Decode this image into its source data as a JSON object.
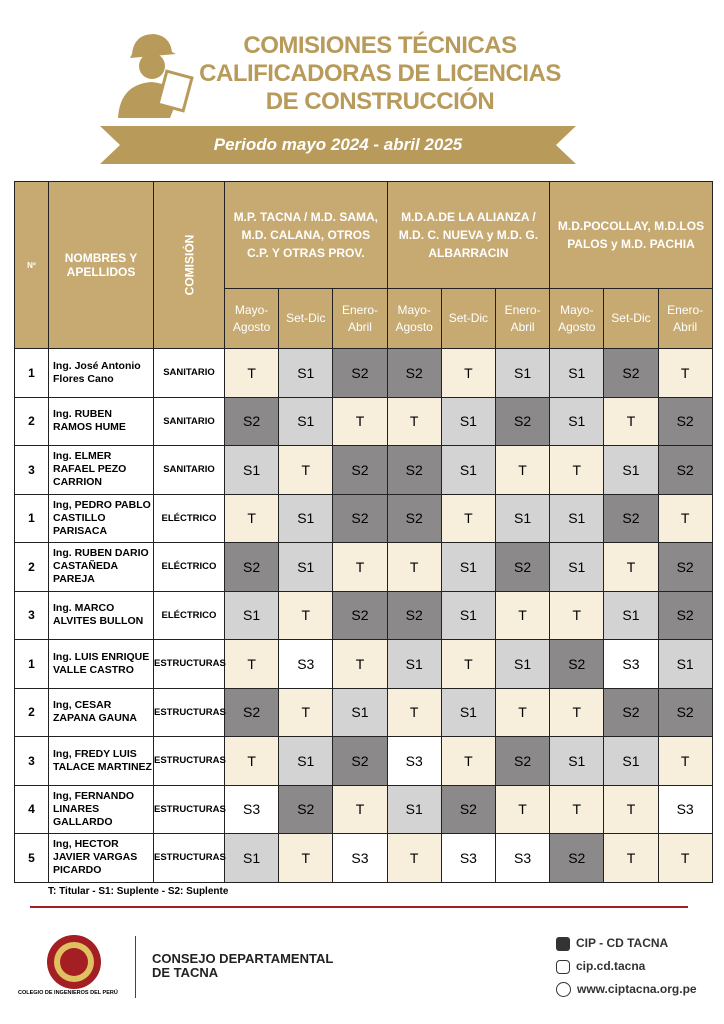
{
  "header": {
    "title_lines": [
      "COMISIONES TÉCNICAS",
      "CALIFICADORAS DE LICENCIAS",
      "DE CONSTRUCCIÓN"
    ],
    "subtitle": "Periodo mayo 2024 - abril 2025"
  },
  "table": {
    "num_header": "Nº",
    "name_header": "NOMBRES Y APELLIDOS",
    "commission_header": "COMISIÓN",
    "groups": [
      "M.P. TACNA / M.D. SAMA, M.D. CALANA, OTROS C.P. Y OTRAS PROV.",
      "M.D.A.DE LA ALIANZA / M.D.  C. NUEVA y M.D. G. ALBARRACIN",
      "M.D.POCOLLAY, M.D.LOS PALOS y M.D. PACHIA"
    ],
    "periods": [
      "Mayo-Agosto",
      "Set-Dic",
      "Enero-Abril",
      "Mayo-Agosto",
      "Set-Dic",
      "Enero-Abril",
      "Mayo-Agosto",
      "Set-Dic",
      "Enero-Abril"
    ],
    "rows": [
      {
        "num": "1",
        "name": "Ing. José Antonio Flores Cano",
        "commission": "SANITARIO",
        "cells": [
          "T",
          "S1",
          "S2",
          "S2",
          "T",
          "S1",
          "S1",
          "S2",
          "T"
        ]
      },
      {
        "num": "2",
        "name": "Ing. RUBEN RAMOS HUME",
        "commission": "SANITARIO",
        "cells": [
          "S2",
          "S1",
          "T",
          "T",
          "S1",
          "S2",
          "S1",
          "T",
          "S2"
        ]
      },
      {
        "num": "3",
        "name": "Ing. ELMER RAFAEL PEZO CARRION",
        "commission": "SANITARIO",
        "cells": [
          "S1",
          "T",
          "S2",
          "S2",
          "S1",
          "T",
          "T",
          "S1",
          "S2"
        ]
      },
      {
        "num": "1",
        "name": "Ing, PEDRO PABLO CASTILLO PARISACA",
        "commission": "ELÉCTRICO",
        "cells": [
          "T",
          "S1",
          "S2",
          "S2",
          "T",
          "S1",
          "S1",
          "S2",
          "T"
        ]
      },
      {
        "num": "2",
        "name": "Ing. RUBEN DARIO CASTAÑEDA PAREJA",
        "commission": "ELÉCTRICO",
        "cells": [
          "S2",
          "S1",
          "T",
          "T",
          "S1",
          "S2",
          "S1",
          "T",
          "S2"
        ]
      },
      {
        "num": "3",
        "name": "Ing. MARCO ALVITES BULLON",
        "commission": "ELÉCTRICO",
        "cells": [
          "S1",
          "T",
          "S2",
          "S2",
          "S1",
          "T",
          "T",
          "S1",
          "S2"
        ]
      },
      {
        "num": "1",
        "name": "Ing. LUIS ENRIQUE VALLE CASTRO",
        "commission": "ESTRUCTURAS",
        "cells": [
          "T",
          "S3",
          "T",
          "S1",
          "T",
          "S1",
          "S2",
          "S3",
          "S1"
        ]
      },
      {
        "num": "2",
        "name": "Ing, CESAR ZAPANA GAUNA",
        "commission": "ESTRUCTURAS",
        "cells": [
          "S2",
          "T",
          "S1",
          "T",
          "S1",
          "T",
          "T",
          "S2",
          "S2"
        ]
      },
      {
        "num": "3",
        "name": "Ing, FREDY LUIS TALACE MARTINEZ",
        "commission": "ESTRUCTURAS",
        "cells": [
          "T",
          "S1",
          "S2",
          "S3",
          "T",
          "S2",
          "S1",
          "S1",
          "T"
        ]
      },
      {
        "num": "4",
        "name": "Ing, FERNANDO LINARES GALLARDO",
        "commission": "ESTRUCTURAS",
        "cells": [
          "S3",
          "S2",
          "T",
          "S1",
          "S2",
          "T",
          "T",
          "T",
          "S3"
        ]
      },
      {
        "num": "5",
        "name": "Ing, HECTOR JAVIER VARGAS PICARDO",
        "commission": "ESTRUCTURAS",
        "cells": [
          "S1",
          "T",
          "S3",
          "T",
          "S3",
          "S3",
          "S2",
          "T",
          "T"
        ]
      }
    ]
  },
  "legend": "T: Titular  -  S1: Suplente  -  S2: Suplente",
  "footer": {
    "org": "CONSEJO DEPARTAMENTAL DE TACNA",
    "college": "COLEGIO DE INGENIEROS DEL PERÚ",
    "facebook": "CIP - CD TACNA",
    "instagram": "cip.cd.tacna",
    "web": "www.ciptacna.org.pe"
  }
}
